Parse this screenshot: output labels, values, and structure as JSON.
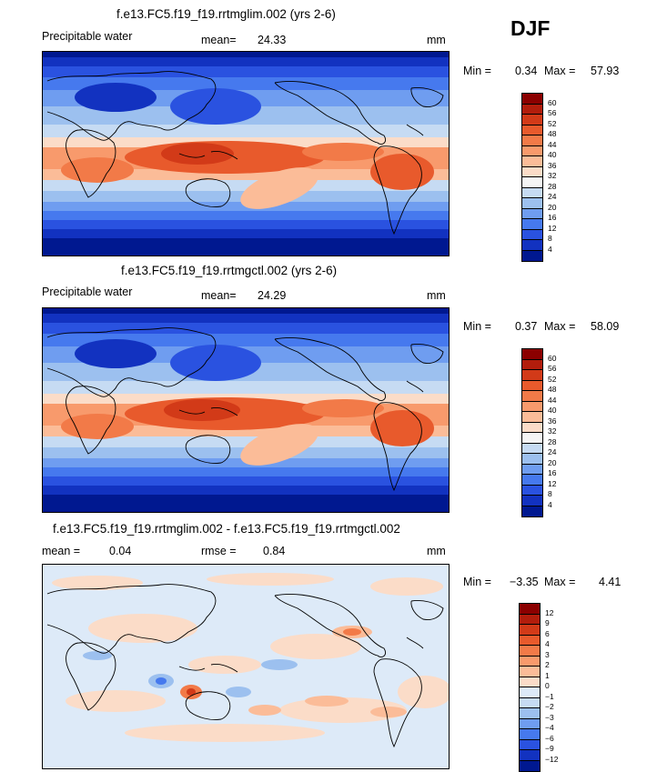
{
  "season": "DJF",
  "panels": [
    {
      "id": "top",
      "title": "f.e13.FC5.f19_f19.rrtmglim.002 (yrs 2-6)",
      "variable": "Precipitable water",
      "stat1_label": "mean=",
      "stat1_value": "24.33",
      "units": "mm",
      "min_label": "Min =",
      "min_value": "0.34",
      "max_label": "Max =",
      "max_value": "57.93",
      "colorbar": {
        "labels": [
          "60",
          "56",
          "52",
          "48",
          "44",
          "40",
          "36",
          "32",
          "28",
          "24",
          "20",
          "16",
          "12",
          "8",
          "4"
        ],
        "colors": [
          "#8b0000",
          "#b21d0c",
          "#d23a18",
          "#e85a2c",
          "#f27a48",
          "#f89a6c",
          "#fbbc98",
          "#fbdcc8",
          "#f5f5f5",
          "#c6dbf3",
          "#9cc0ef",
          "#6f9df0",
          "#4679ee",
          "#2a52e0",
          "#1232c0",
          "#001890"
        ]
      }
    },
    {
      "id": "middle",
      "title": "f.e13.FC5.f19_f19.rrtmgctl.002 (yrs 2-6)",
      "variable": "Precipitable water",
      "stat1_label": "mean=",
      "stat1_value": "24.29",
      "units": "mm",
      "min_label": "Min =",
      "min_value": "0.37",
      "max_label": "Max =",
      "max_value": "58.09",
      "colorbar": {
        "labels": [
          "60",
          "56",
          "52",
          "48",
          "44",
          "40",
          "36",
          "32",
          "28",
          "24",
          "20",
          "16",
          "12",
          "8",
          "4"
        ],
        "colors": [
          "#8b0000",
          "#b21d0c",
          "#d23a18",
          "#e85a2c",
          "#f27a48",
          "#f89a6c",
          "#fbbc98",
          "#fbdcc8",
          "#f5f5f5",
          "#c6dbf3",
          "#9cc0ef",
          "#6f9df0",
          "#4679ee",
          "#2a52e0",
          "#1232c0",
          "#001890"
        ]
      }
    },
    {
      "id": "bottom",
      "title": "f.e13.FC5.f19_f19.rrtmglim.002 - f.e13.FC5.f19_f19.rrtmgctl.002",
      "stat1_label": "mean =",
      "stat1_value": "0.04",
      "stat2_label": "rmse =",
      "stat2_value": "0.84",
      "units": "mm",
      "min_label": "Min =",
      "min_value": "−3.35",
      "max_label": "Max =",
      "max_value": "4.41",
      "colorbar": {
        "labels": [
          "12",
          "9",
          "6",
          "4",
          "3",
          "2",
          "1",
          "0",
          "−1",
          "−2",
          "−3",
          "−4",
          "−6",
          "−9",
          "−12"
        ],
        "colors": [
          "#8b0000",
          "#b21d0c",
          "#d23a18",
          "#e85a2c",
          "#f27a48",
          "#f89a6c",
          "#fbbc98",
          "#fbdcc8",
          "#ddeaf8",
          "#c6dbf3",
          "#9cc0ef",
          "#6f9df0",
          "#4679ee",
          "#2a52e0",
          "#1232c0",
          "#001890"
        ]
      }
    }
  ]
}
